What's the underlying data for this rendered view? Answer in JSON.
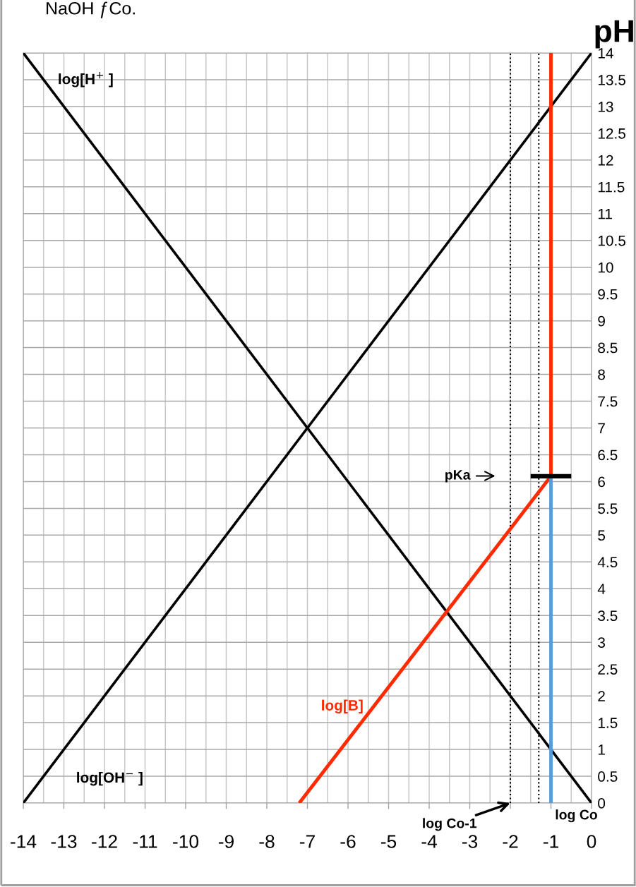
{
  "chart_data": {
    "type": "line",
    "title": "NaOH ƒCo.",
    "ylabel": "pH",
    "xlim": [
      -14,
      0
    ],
    "xticks": [
      -14,
      -13,
      -12,
      -11,
      -10,
      -9,
      -8,
      -7,
      -6,
      -5,
      -4,
      -3,
      -2,
      -1,
      0
    ],
    "ylim": [
      0,
      14
    ],
    "yticks": [
      0,
      0.5,
      1,
      1.5,
      2,
      2.5,
      3,
      3.5,
      4,
      4.5,
      5,
      5.5,
      6,
      6.5,
      7,
      7.5,
      8,
      8.5,
      9,
      9.5,
      10,
      10.5,
      11,
      11.5,
      12,
      12.5,
      13,
      13.5,
      14
    ],
    "grid": true,
    "legend": false,
    "marker": "none",
    "line_style": "solid",
    "series": [
      {
        "name": "log[H$^{+}$ ]",
        "color": "#000000",
        "x": [
          -14,
          0
        ],
        "values": [
          14,
          0
        ]
      },
      {
        "name": "log[OH$^{−}$ ]",
        "color": "#000000",
        "x": [
          -14,
          0
        ],
        "values": [
          0,
          14
        ]
      },
      {
        "name": "log[B]",
        "color": "#ff2a00",
        "x": [
          -7.2,
          -1,
          -1
        ],
        "values": [
          0,
          6.1,
          14
        ]
      },
      {
        "color": "#5b9bd5",
        "x": [
          -1,
          -1
        ],
        "values": [
          0,
          6.1
        ]
      },
      {
        "color": "#000000",
        "x": [
          -1.5,
          -0.5
        ],
        "values": [
          6.1,
          6.1
        ]
      }
    ],
    "ref_lines": [
      {
        "axis": "x",
        "value": -2,
        "color": "#000000",
        "line_style": "dotted"
      },
      {
        "axis": "x",
        "value": -1.3,
        "color": "#000000",
        "line_style": "dotted"
      }
    ],
    "annotations": [
      "pKa",
      {
        "text": "log Co-1",
        "x": -2,
        "y": 0
      },
      {
        "text": "log Co",
        "x": -1,
        "y": 0
      }
    ]
  }
}
